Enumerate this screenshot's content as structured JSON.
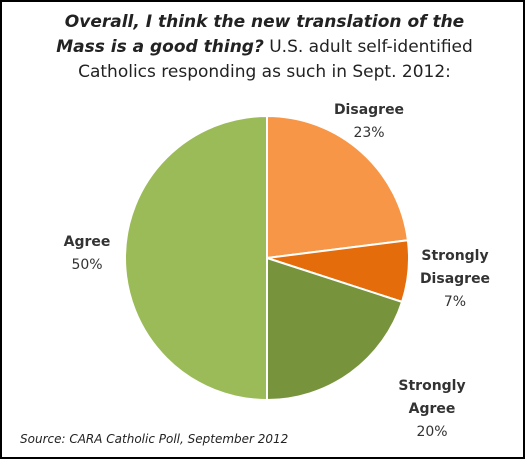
{
  "chart_data": {
    "type": "pie",
    "title": "Overall, I think the new translation of the Mass is a good thing?",
    "subtitle": "U.S. adult self-identified Catholics responding as such in Sept. 2012:",
    "categories": [
      "Disagree",
      "Strongly Disagree",
      "Strongly Agree",
      "Agree"
    ],
    "values": [
      23,
      7,
      20,
      50
    ],
    "value_labels": [
      "23%",
      "7%",
      "20%",
      "50%"
    ],
    "colors": [
      "#f79646",
      "#e46c0a",
      "#77933c",
      "#9bbb59"
    ],
    "source": "Source:  CARA Catholic Poll, September 2012"
  }
}
